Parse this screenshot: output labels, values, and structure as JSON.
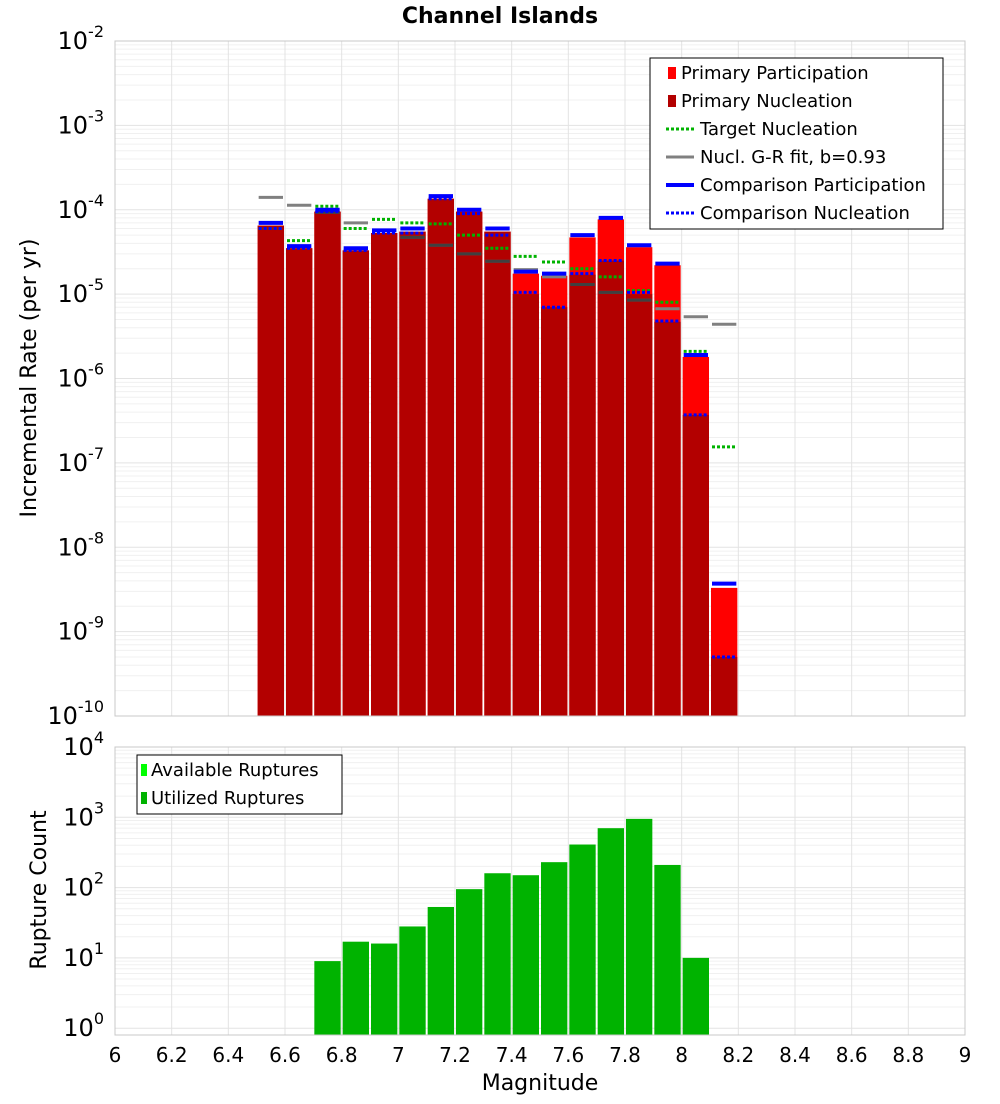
{
  "title": "Channel Islands",
  "colors": {
    "primary_participation": "#ff0000",
    "primary_nucleation": "#b30000",
    "target_nucleation": "#00b300",
    "gr_fit": "#808080",
    "comparison": "#0000ff",
    "rupture_bar": "#00b300",
    "available_legend": "#00ff00",
    "grid": "#e3e3e3"
  },
  "chart_data": [
    {
      "type": "bar",
      "title": "Channel Islands",
      "xlabel": "",
      "ylabel": "Incremental Rate (per yr)",
      "scale": "log",
      "xlim": [
        6,
        9
      ],
      "ylim": [
        1e-10,
        0.01
      ],
      "y_tick_exponents": [
        -10,
        -9,
        -8,
        -7,
        -6,
        -5,
        -4,
        -3,
        -2
      ],
      "grid": true,
      "legend_position": "top-right",
      "legend": [
        "Primary Participation",
        "Primary Nucleation",
        "Target Nucleation",
        "Nucl. G-R fit, b=0.93",
        "Comparison Participation",
        "Comparison Nucleation"
      ],
      "x": [
        6.55,
        6.65,
        6.75,
        6.85,
        6.95,
        7.05,
        7.15,
        7.25,
        7.35,
        7.45,
        7.55,
        7.65,
        7.75,
        7.85,
        7.95,
        8.05,
        8.15
      ],
      "series": [
        {
          "name": "Primary Participation",
          "values": [
            6.5e-05,
            3.5e-05,
            9.5e-05,
            3.3e-05,
            5.3e-05,
            5.5e-05,
            0.000135,
            9.5e-05,
            5.5e-05,
            1.75e-05,
            1.65e-05,
            4.7e-05,
            7.7e-05,
            3.6e-05,
            2.2e-05,
            1.8e-06,
            3.3e-09
          ]
        },
        {
          "name": "Primary Nucleation",
          "values": [
            6.5e-05,
            3.5e-05,
            9.5e-05,
            3.3e-05,
            5.3e-05,
            5.5e-05,
            0.000135,
            9.5e-05,
            5.5e-05,
            1e-05,
            7e-06,
            1.7e-05,
            2.5e-05,
            1e-05,
            4.7e-06,
            3.7e-07,
            5e-10
          ]
        },
        {
          "name": "Target Nucleation",
          "values": [
            6e-05,
            4.3e-05,
            0.00011,
            6e-05,
            7.7e-05,
            7e-05,
            6.8e-05,
            5e-05,
            3.5e-05,
            2.8e-05,
            2.4e-05,
            2e-05,
            1.6e-05,
            1.1e-05,
            8e-06,
            2.1e-06,
            1.55e-07
          ]
        },
        {
          "name": "Nucl. G-R fit, b=0.93",
          "values": [
            0.00014,
            0.000113,
            9.3e-05,
            7e-05,
            5.7e-05,
            4.7e-05,
            3.8e-05,
            3e-05,
            2.45e-05,
            1.95e-05,
            1.6e-05,
            1.3e-05,
            1.05e-05,
            8.5e-06,
            6.7e-06,
            5.4e-06,
            4.4e-06
          ]
        },
        {
          "name": "Comparison Participation",
          "values": [
            7e-05,
            3.7e-05,
            0.0001,
            3.5e-05,
            5.7e-05,
            6e-05,
            0.000145,
            0.0001,
            6e-05,
            1.85e-05,
            1.75e-05,
            5e-05,
            8e-05,
            3.8e-05,
            2.3e-05,
            1.9e-06,
            3.7e-09
          ]
        },
        {
          "name": "Comparison Nucleation",
          "values": [
            6e-05,
            3.5e-05,
            9.5e-05,
            3.3e-05,
            5.3e-05,
            5.3e-05,
            0.000135,
            9e-05,
            5e-05,
            1.05e-05,
            7e-06,
            1.75e-05,
            2.5e-05,
            1.05e-05,
            4.8e-06,
            3.7e-07,
            5e-10
          ]
        }
      ]
    },
    {
      "type": "bar",
      "title": "",
      "xlabel": "Magnitude",
      "ylabel": "Rupture Count",
      "scale": "log",
      "xlim": [
        6,
        9
      ],
      "ylim": [
        0.8,
        10000
      ],
      "x_tick_labels": [
        "6",
        "6.2",
        "6.4",
        "6.6",
        "6.8",
        "7",
        "7.2",
        "7.4",
        "7.6",
        "7.8",
        "8",
        "8.2",
        "8.4",
        "8.6",
        "8.8",
        "9"
      ],
      "y_tick_exponents": [
        0,
        1,
        2,
        3,
        4
      ],
      "grid": true,
      "legend_position": "top-left",
      "legend": [
        "Available Ruptures",
        "Utilized Ruptures"
      ],
      "x": [
        6.75,
        6.85,
        6.95,
        7.05,
        7.15,
        7.25,
        7.35,
        7.45,
        7.55,
        7.65,
        7.75,
        7.85,
        7.95,
        8.05
      ],
      "series": [
        {
          "name": "Utilized Ruptures",
          "values": [
            9,
            17,
            16,
            28,
            53,
            95,
            160,
            150,
            230,
            410,
            700,
            950,
            210,
            10
          ]
        }
      ]
    }
  ]
}
